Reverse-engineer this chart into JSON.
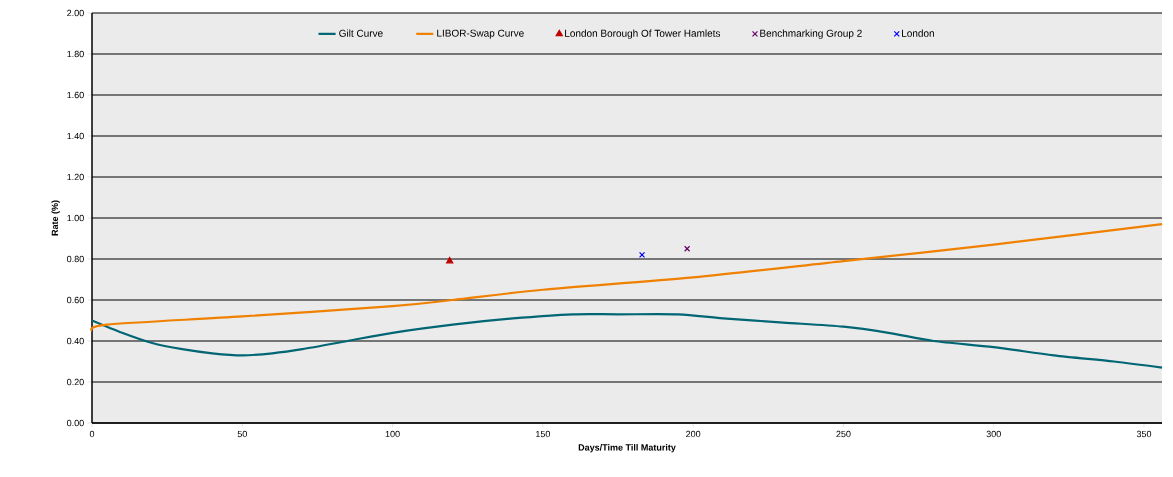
{
  "chart_data": {
    "type": "line",
    "xlabel": "Days/Time Till Maturity",
    "ylabel": "Rate (%)",
    "xlim": [
      0,
      356
    ],
    "ylim": [
      0,
      2
    ],
    "xticks": [
      0,
      50,
      100,
      150,
      200,
      250,
      300,
      350
    ],
    "yticks": [
      {
        "value": 0,
        "label": "0.00"
      },
      {
        "value": 0.2,
        "label": "0.20"
      },
      {
        "value": 0.4,
        "label": "0.40"
      },
      {
        "value": 0.6,
        "label": "0.60"
      },
      {
        "value": 0.8,
        "label": "0.80"
      },
      {
        "value": 1.0,
        "label": "1.00"
      },
      {
        "value": 1.2,
        "label": "1.20"
      },
      {
        "value": 1.4,
        "label": "1.40"
      },
      {
        "value": 1.6,
        "label": "1.60"
      },
      {
        "value": 1.8,
        "label": "1.80"
      },
      {
        "value": 2.0,
        "label": "2.00"
      }
    ],
    "grid": "y",
    "legend": "top",
    "series": [
      {
        "name": "Gilt Curve",
        "color": "#006674",
        "marker": "none",
        "x": [
          0,
          10,
          20,
          30,
          40,
          50,
          60,
          70,
          85,
          100,
          120,
          140,
          160,
          175,
          195,
          210,
          230,
          250,
          265,
          280,
          300,
          320,
          340,
          356
        ],
        "values": [
          0.5,
          0.44,
          0.39,
          0.36,
          0.34,
          0.33,
          0.34,
          0.36,
          0.4,
          0.44,
          0.48,
          0.51,
          0.53,
          0.53,
          0.53,
          0.51,
          0.49,
          0.47,
          0.44,
          0.4,
          0.37,
          0.33,
          0.3,
          0.27
        ]
      },
      {
        "name": "LIBOR-Swap Curve",
        "color": "#f08000",
        "marker": "none",
        "x": [
          0,
          5,
          50,
          100,
          120,
          150,
          200,
          250,
          300,
          356
        ],
        "values": [
          0.45,
          0.48,
          0.52,
          0.57,
          0.6,
          0.65,
          0.71,
          0.79,
          0.87,
          0.97
        ]
      },
      {
        "name": "London Borough Of Tower Hamlets",
        "type": "scatter",
        "color": "#c00000",
        "marker": "triangle",
        "x": [
          119
        ],
        "values": [
          0.79
        ]
      },
      {
        "name": "Benchmarking Group 2",
        "type": "scatter",
        "color": "#660066",
        "marker": "cross",
        "x": [
          198
        ],
        "values": [
          0.85
        ]
      },
      {
        "name": "London",
        "type": "scatter",
        "color": "#0000ff",
        "marker": "cross",
        "x": [
          183
        ],
        "values": [
          0.82
        ]
      }
    ]
  }
}
